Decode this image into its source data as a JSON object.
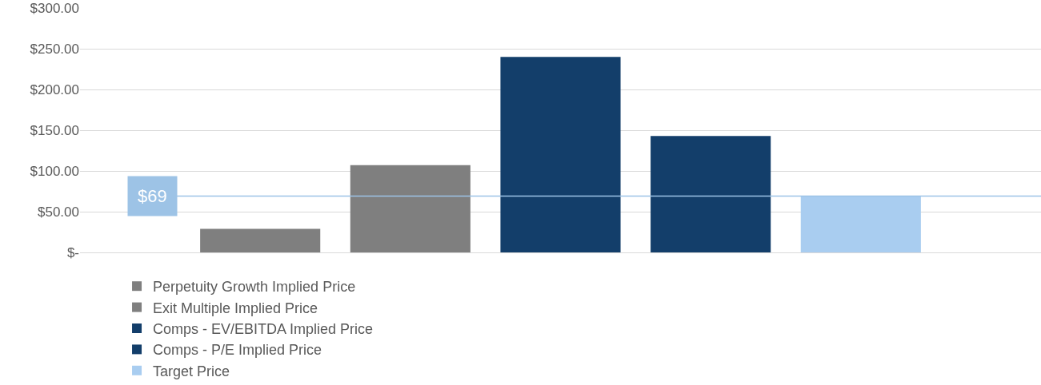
{
  "chart_data": {
    "type": "bar",
    "categories": [
      null,
      null,
      null,
      null,
      null
    ],
    "series": [
      {
        "name": "Perpetuity Growth Implied Price",
        "color": "#7f7f7f",
        "values": [
          29,
          null,
          null,
          null,
          null
        ]
      },
      {
        "name": "Exit Multiple Implied Price",
        "color": "#7f7f7f",
        "values": [
          null,
          107,
          null,
          null,
          null
        ]
      },
      {
        "name": "Comps - EV/EBITDA Implied Price",
        "color": "#133e6a",
        "values": [
          null,
          null,
          240,
          null,
          null
        ]
      },
      {
        "name": "Comps - P/E Implied Price",
        "color": "#133e6a",
        "values": [
          null,
          null,
          null,
          143,
          null
        ]
      },
      {
        "name": "Target Price",
        "color": "#a9cdf0",
        "values": [
          null,
          null,
          null,
          null,
          69
        ]
      }
    ],
    "ylim": [
      0,
      300
    ],
    "yticks": [
      {
        "value": 0,
        "label": "$-"
      },
      {
        "value": 50,
        "label": "$50.00"
      },
      {
        "value": 100,
        "label": "$100.00"
      },
      {
        "value": 150,
        "label": "$150.00"
      },
      {
        "value": 200,
        "label": "$200.00"
      },
      {
        "value": 250,
        "label": "$250.00"
      },
      {
        "value": 300,
        "label": "$300.00"
      }
    ],
    "grid": "y",
    "legend": "bottom",
    "ref_lines": [
      {
        "axis": "y",
        "value": 69,
        "label": "$69",
        "color": "#9dc3e6"
      }
    ]
  }
}
